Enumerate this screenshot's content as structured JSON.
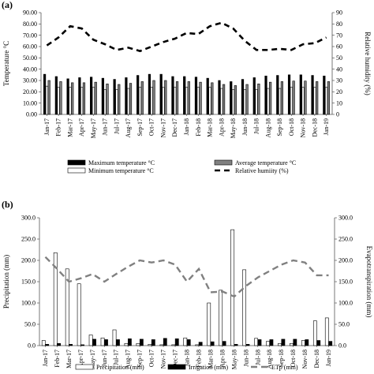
{
  "chart_data": [
    {
      "panel": "(a)",
      "type": "bar",
      "categories": [
        "Jan-17",
        "Feb-17",
        "Mar-17",
        "Apr-17",
        "May-17",
        "Jun-17",
        "Jul-17",
        "Aug-17",
        "Sep-17",
        "Oct-17",
        "Nov-17",
        "Dec-17",
        "Jan-18",
        "Feb-18",
        "Mar-18",
        "Apr-18",
        "May-18",
        "Jun-18",
        "Jul-18",
        "Aug-18",
        "Sep-18",
        "Oct-18",
        "Nov-18",
        "Dec-18",
        "Jan-19"
      ],
      "ylabel": "Temperature °C",
      "y2label": "Relative humidity (%)",
      "ylim": [
        0,
        90
      ],
      "y2lim": [
        0,
        90
      ],
      "yticks": [
        "0.00",
        "10.00",
        "20.00",
        "30.00",
        "40.00",
        "50.00",
        "60.00",
        "70.00",
        "80.00",
        "90.00"
      ],
      "y2ticks": [
        "0",
        "10",
        "20",
        "30",
        "40",
        "50",
        "60",
        "70",
        "80",
        "90"
      ],
      "series": [
        {
          "name": "Maximum temperature °C",
          "kind": "bar",
          "color": "#000000",
          "values": [
            35.5,
            33.5,
            31.5,
            32.5,
            33,
            32,
            31,
            32.5,
            34.5,
            35.5,
            35.5,
            33.5,
            33.5,
            33,
            32,
            30,
            29,
            31,
            32.5,
            34,
            34.5,
            35,
            35,
            34.5,
            34
          ]
        },
        {
          "name": "Minimum temperature °C",
          "kind": "bar",
          "color": "#ffffff",
          "values": [
            25,
            24,
            24,
            24,
            24,
            22,
            22,
            23,
            24,
            24,
            24,
            24,
            24,
            24,
            24,
            23,
            22,
            22,
            22,
            23,
            23,
            24,
            24,
            24,
            24
          ]
        },
        {
          "name": "Average temperature °C",
          "kind": "bar",
          "color": "#808080",
          "values": [
            30,
            29,
            28,
            28,
            28.5,
            27,
            26.5,
            27.5,
            29,
            30,
            30,
            29,
            29,
            28.5,
            28,
            26.5,
            25.5,
            26.5,
            27,
            28.5,
            29,
            29.5,
            29.5,
            29,
            29
          ]
        },
        {
          "name": "Relative humiity (%)",
          "kind": "line",
          "axis": "right",
          "color": "#000000",
          "values": [
            61,
            68,
            78,
            76,
            66,
            62,
            57,
            59,
            56,
            60,
            64,
            67,
            72,
            71,
            78,
            81,
            76,
            65,
            57,
            57,
            58,
            57,
            62,
            63,
            68
          ]
        }
      ]
    },
    {
      "panel": "(b)",
      "type": "bar",
      "categories": [
        "Jan-17",
        "Feb-17",
        "Mar-17",
        "Apr-17",
        "May-17",
        "Jun-17",
        "Jul-17",
        "Aug-17",
        "Sep-17",
        "Oct-17",
        "Nov-17",
        "Dec-17",
        "Jan-18",
        "Feb-18",
        "Mar-18",
        "Apr-18",
        "May-18",
        "Jun-18",
        "Jul-18",
        "Aug-18",
        "Sep-18",
        "Oct-18",
        "Nov-18",
        "Dec-18",
        "Jan-19"
      ],
      "ylabel": "Precipitation    (mm)",
      "y2label": "Evapotranspiration (mm)",
      "ylim": [
        0,
        300
      ],
      "y2lim": [
        0,
        300
      ],
      "yticks": [
        "0.0",
        "50.0",
        "100.0",
        "150.0",
        "200.0",
        "250.0",
        "300.0"
      ],
      "y2ticks": [
        "0.0",
        "50.0",
        "100.0",
        "150.0",
        "200.0",
        "250.0",
        "300.0"
      ],
      "series": [
        {
          "name": "Precipitation (mm)",
          "kind": "bar",
          "color": "#ffffff",
          "values": [
            12,
            218,
            180,
            145,
            25,
            18,
            37,
            5,
            5,
            3,
            2,
            2,
            18,
            2,
            100,
            130,
            272,
            178,
            17,
            10,
            5,
            5,
            12,
            58,
            65
          ]
        },
        {
          "name": "Irrigation (mm)",
          "kind": "bar",
          "color": "#000000",
          "values": [
            3,
            5,
            3,
            2,
            15,
            14,
            14,
            16,
            15,
            14,
            17,
            16,
            14,
            8,
            9,
            10,
            3,
            3,
            14,
            14,
            15,
            15,
            14,
            12,
            10
          ]
        },
        {
          "name": "ETp (mm)",
          "kind": "line",
          "axis": "right",
          "color": "#808080",
          "values": [
            208,
            180,
            150,
            158,
            168,
            150,
            168,
            185,
            200,
            195,
            200,
            190,
            150,
            180,
            125,
            127,
            115,
            140,
            160,
            175,
            190,
            200,
            195,
            165,
            165
          ]
        }
      ]
    }
  ]
}
